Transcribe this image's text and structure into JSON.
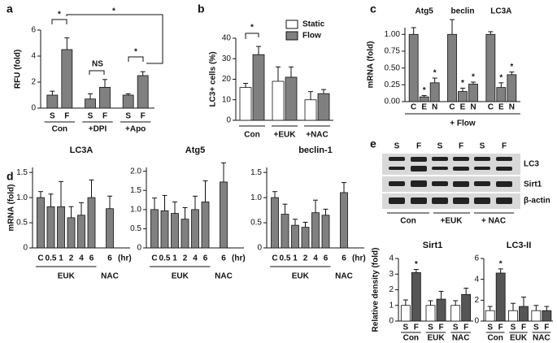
{
  "chart_data": [
    {
      "panel": "a",
      "type": "bar",
      "ylabel": "RFU (fold)",
      "ylim": [
        0,
        6
      ],
      "yticks": [
        0,
        2,
        4,
        6
      ],
      "categories": [
        "Con",
        "+DPI",
        "+Apo"
      ],
      "series": [
        {
          "name": "S",
          "color": "#808080",
          "values": [
            1.0,
            0.7,
            1.0
          ],
          "errors": [
            0.3,
            0.4,
            0.1
          ]
        },
        {
          "name": "F",
          "color": "#808080",
          "values": [
            4.5,
            1.6,
            2.5
          ],
          "errors": [
            0.9,
            0.6,
            0.3
          ]
        }
      ],
      "series_labels": true,
      "annotations": [
        "*",
        "*",
        "NS",
        "*"
      ]
    },
    {
      "panel": "b",
      "type": "bar",
      "ylabel": "LC3+ cells (%)",
      "ylim": [
        0,
        40
      ],
      "yticks": [
        0,
        10,
        20,
        30,
        40
      ],
      "categories": [
        "Con",
        "+EUK",
        "+NAC"
      ],
      "series": [
        {
          "name": "Static",
          "color": "#ffffff",
          "values": [
            16,
            19,
            10
          ],
          "errors": [
            2,
            7,
            4
          ]
        },
        {
          "name": "Flow",
          "color": "#808080",
          "values": [
            32,
            21,
            13
          ],
          "errors": [
            4,
            5,
            2
          ]
        }
      ],
      "legend": "upper right",
      "annotations": [
        "*"
      ]
    },
    {
      "panel": "c",
      "type": "bar",
      "ylabel": "mRNA (fold)",
      "ylim": [
        0,
        1.1
      ],
      "yticks": [
        {
          "value": 0,
          "label": "0.00"
        },
        0.25,
        {
          "value": 0.5,
          "label": "0.50"
        },
        0.75,
        {
          "value": 1,
          "label": "1.00"
        }
      ],
      "categories": [
        "Atg5",
        "beclin",
        "LC3A"
      ],
      "series": [
        {
          "name": "C",
          "color": "#808080",
          "values": [
            1.0,
            1.0,
            1.0
          ],
          "errors": [
            0.1,
            0.22,
            0.04
          ]
        },
        {
          "name": "E",
          "color": "#808080",
          "values": [
            0.07,
            0.15,
            0.21
          ],
          "errors": [
            0.02,
            0.05,
            0.07
          ]
        },
        {
          "name": "N",
          "color": "#808080",
          "values": [
            0.28,
            0.26,
            0.4
          ],
          "errors": [
            0.07,
            0.03,
            0.04
          ]
        }
      ],
      "series_labels": true,
      "footer": "+ Flow",
      "annotations": [
        "*",
        "*",
        "*",
        "*",
        "*",
        "*"
      ]
    },
    {
      "panel": "d",
      "type": "bar",
      "title": "LC3A",
      "ylabel": "mRNA (fold)",
      "ylim": [
        0,
        1.6
      ],
      "yticks": [
        0,
        0.5,
        {
          "value": 1,
          "label": "1.0"
        },
        1.5
      ],
      "categories": [
        "C",
        "0.5",
        "1",
        "2",
        "4",
        "6",
        "6"
      ],
      "groups": [
        "EUK",
        "EUK",
        "EUK",
        "EUK",
        "EUK",
        "EUK",
        "NAC"
      ],
      "x_unit": "(hr)",
      "color": "#808080",
      "values": [
        1.0,
        0.82,
        0.82,
        0.6,
        0.65,
        1.0,
        0.78
      ],
      "errors": [
        0.12,
        0.25,
        0.5,
        0.22,
        0.25,
        0.35,
        0.25
      ]
    },
    {
      "type": "bar",
      "title": "Atg5",
      "ylim": [
        0,
        2.1
      ],
      "yticks": [
        0,
        0.5,
        {
          "value": 1,
          "label": "1.0"
        },
        1.5,
        {
          "value": 2,
          "label": "2.0"
        }
      ],
      "categories": [
        "C",
        "0.5",
        "1",
        "2",
        "4",
        "6",
        "6"
      ],
      "groups": [
        "EUK",
        "EUK",
        "EUK",
        "EUK",
        "EUK",
        "EUK",
        "NAC"
      ],
      "x_unit": "(hr)",
      "color": "#808080",
      "values": [
        1.0,
        0.97,
        0.9,
        0.75,
        1.0,
        1.2,
        1.72
      ],
      "errors": [
        0.3,
        0.4,
        0.3,
        0.3,
        0.35,
        0.55,
        0.5
      ]
    },
    {
      "type": "bar",
      "title": "beclin-1",
      "ylim": [
        0,
        1.6
      ],
      "yticks": [
        0,
        0.5,
        {
          "value": 1,
          "label": "1.0"
        },
        1.5
      ],
      "categories": [
        "C",
        "0.5",
        "1",
        "2",
        "4",
        "6",
        "6"
      ],
      "groups": [
        "EUK",
        "EUK",
        "EUK",
        "EUK",
        "EUK",
        "EUK",
        "NAC"
      ],
      "x_unit": "(hr)",
      "color": "#808080",
      "values": [
        1.0,
        0.67,
        0.45,
        0.41,
        0.7,
        0.65,
        1.1
      ],
      "errors": [
        0.12,
        0.2,
        0.12,
        0.1,
        0.25,
        0.12,
        0.2
      ]
    },
    {
      "type": "bar",
      "title": "Sirt1",
      "ylabel": "Relative density (fold)",
      "ylim": [
        0,
        4
      ],
      "yticks": [
        0,
        1,
        2,
        3,
        4
      ],
      "categories": [
        "Con",
        "EUK",
        "NAC"
      ],
      "series": [
        {
          "name": "S",
          "color": "#ffffff",
          "values": [
            1,
            1,
            1
          ],
          "errors": [
            0.35,
            0.3,
            0.3
          ]
        },
        {
          "name": "F",
          "color": "#555555",
          "values": [
            3.1,
            1.4,
            1.7
          ],
          "errors": [
            0.2,
            0.5,
            0.4
          ]
        }
      ],
      "series_labels": true,
      "annotations": [
        "*"
      ]
    },
    {
      "type": "bar",
      "title": "LC3-II",
      "ylim": [
        0,
        6
      ],
      "yticks": [
        0,
        2,
        4,
        6
      ],
      "categories": [
        "Con",
        "EUK",
        "NAC"
      ],
      "series": [
        {
          "name": "S",
          "color": "#ffffff",
          "values": [
            1,
            1,
            1
          ],
          "errors": [
            0.4,
            0.7,
            0.5
          ]
        },
        {
          "name": "F",
          "color": "#555555",
          "values": [
            4.6,
            1.4,
            1.0
          ],
          "errors": [
            0.4,
            0.9,
            0.4
          ]
        }
      ],
      "series_labels": true,
      "annotations": [
        "*"
      ]
    }
  ],
  "blot": {
    "panel": "e",
    "lanes": [
      "S",
      "F",
      "S",
      "F",
      "S",
      "F"
    ],
    "bands": [
      "LC3",
      "Sirt1",
      "β-actin"
    ],
    "groups": [
      "Con",
      "+EUK",
      "+ NAC"
    ]
  }
}
